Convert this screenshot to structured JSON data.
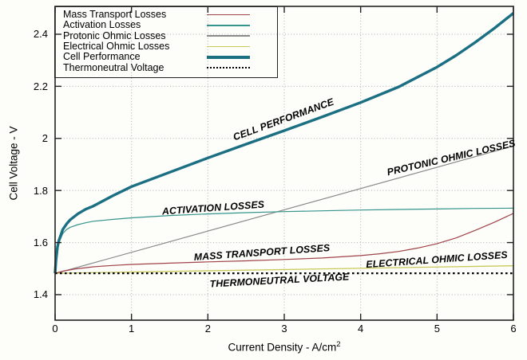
{
  "figure": {
    "background": "#fdfdfa",
    "frame_color": "#222222",
    "grid_color": "#a9b1b1"
  },
  "legend": {
    "position": "top-left",
    "items": [
      {
        "label": "Mass Transport Losses",
        "color": "#a04348",
        "style": "solid",
        "width": 1.5
      },
      {
        "label": "Activation Losses",
        "color": "#35948c",
        "style": "solid",
        "width": 1.5
      },
      {
        "label": "Protonic Ohmic Losses",
        "color": "#8a8a8a",
        "style": "solid",
        "width": 1.5
      },
      {
        "label": "Electrical Ohmic Losses",
        "color": "#c9c95a",
        "style": "solid",
        "width": 1.5
      },
      {
        "label": "Cell Performance",
        "color": "#1b6f83",
        "style": "solid",
        "width": 3.5
      },
      {
        "label": "Thermoneutral Voltage",
        "color": "#000000",
        "style": "dotted",
        "width": 2.4
      }
    ]
  },
  "chart_data": {
    "type": "line",
    "title": "",
    "xlabel": "Current Density - A/cm²",
    "xlabel_main": "Current Density - A/cm",
    "xlabel_sup": "2",
    "ylabel": "Cell Voltage - V",
    "xlim": [
      0,
      6
    ],
    "ylim": [
      1.302,
      2.507
    ],
    "grid": true,
    "legend_position": "top-left",
    "xticks": [
      0,
      1,
      2,
      3,
      4,
      5,
      6
    ],
    "xtick_labels": [
      "0",
      "1",
      "2",
      "3",
      "4",
      "5",
      "6"
    ],
    "yticks": [
      1.4,
      1.6,
      1.8,
      2.0,
      2.2,
      2.4
    ],
    "ytick_labels": [
      "1.4",
      "1.6",
      "1.8",
      "2",
      "2.2",
      "2.4"
    ],
    "series": [
      {
        "name": "Protonic Ohmic Losses",
        "color": "#8a8a8a",
        "width": 1.2,
        "dash": null,
        "x": [
          0,
          6
        ],
        "y": [
          1.481,
          1.971
        ]
      },
      {
        "name": "Electrical Ohmic Losses",
        "color": "#c9c95a",
        "width": 1.3,
        "dash": null,
        "x": [
          0,
          6
        ],
        "y": [
          1.482,
          1.511
        ]
      },
      {
        "name": "Mass Transport Losses",
        "color": "#a04348",
        "width": 1.2,
        "dash": null,
        "x": [
          0,
          0.05,
          0.1,
          0.25,
          0.5,
          0.75,
          1,
          1.5,
          2,
          2.5,
          3,
          3.5,
          4,
          4.25,
          4.5,
          4.75,
          5,
          5.25,
          5.5,
          5.75,
          6
        ],
        "y": [
          1.482,
          1.486,
          1.49,
          1.498,
          1.507,
          1.512,
          1.516,
          1.521,
          1.526,
          1.53,
          1.535,
          1.541,
          1.55,
          1.557,
          1.566,
          1.579,
          1.596,
          1.618,
          1.647,
          1.678,
          1.712
        ]
      },
      {
        "name": "Activation Losses",
        "color": "#35948c",
        "width": 1.2,
        "dash": null,
        "x": [
          0,
          0.01,
          0.03,
          0.05,
          0.1,
          0.15,
          0.2,
          0.3,
          0.4,
          0.5,
          0.75,
          1,
          1.5,
          2,
          2.5,
          3,
          3.5,
          4,
          4.5,
          5,
          5.5,
          6
        ],
        "y": [
          1.482,
          1.525,
          1.575,
          1.6,
          1.634,
          1.65,
          1.659,
          1.669,
          1.676,
          1.682,
          1.689,
          1.695,
          1.704,
          1.71,
          1.715,
          1.719,
          1.722,
          1.725,
          1.727,
          1.729,
          1.731,
          1.732
        ]
      },
      {
        "name": "Cell Performance",
        "color": "#1b6f83",
        "width": 3.4,
        "dash": null,
        "x": [
          0,
          0.01,
          0.03,
          0.05,
          0.1,
          0.15,
          0.2,
          0.3,
          0.4,
          0.5,
          0.75,
          1,
          1.5,
          2,
          2.5,
          3,
          3.5,
          4,
          4.5,
          5,
          5.25,
          5.5,
          5.75,
          6
        ],
        "y": [
          1.482,
          1.528,
          1.582,
          1.608,
          1.65,
          1.671,
          1.688,
          1.711,
          1.728,
          1.74,
          1.779,
          1.815,
          1.87,
          1.925,
          1.978,
          2.03,
          2.083,
          2.138,
          2.198,
          2.274,
          2.319,
          2.369,
          2.423,
          2.481
        ]
      },
      {
        "name": "Thermoneutral Voltage",
        "color": "#000000",
        "width": 2.3,
        "dash": "2.6 3.4",
        "x": [
          0,
          6
        ],
        "y": [
          1.482,
          1.482
        ]
      }
    ],
    "annotations": [
      {
        "text": "CELL PERFORMANCE",
        "x": 2.99,
        "y": 2.073,
        "angle": -20
      },
      {
        "text": "PROTONIC OHMIC LOSSES",
        "x": 5.18,
        "y": 1.926,
        "angle": -13
      },
      {
        "text": "ACTIVATION LOSSES",
        "x": 2.07,
        "y": 1.734,
        "angle": -4
      },
      {
        "text": "MASS TRANSPORT LOSSES",
        "x": 2.71,
        "y": 1.562,
        "angle": -4
      },
      {
        "text": "ELECTRICAL OHMIC LOSSES",
        "x": 5.0,
        "y": 1.534,
        "angle": -4
      },
      {
        "text": "THERMONEUTRAL VOLTAGE",
        "x": 2.94,
        "y": 1.455,
        "angle": -3
      }
    ]
  }
}
